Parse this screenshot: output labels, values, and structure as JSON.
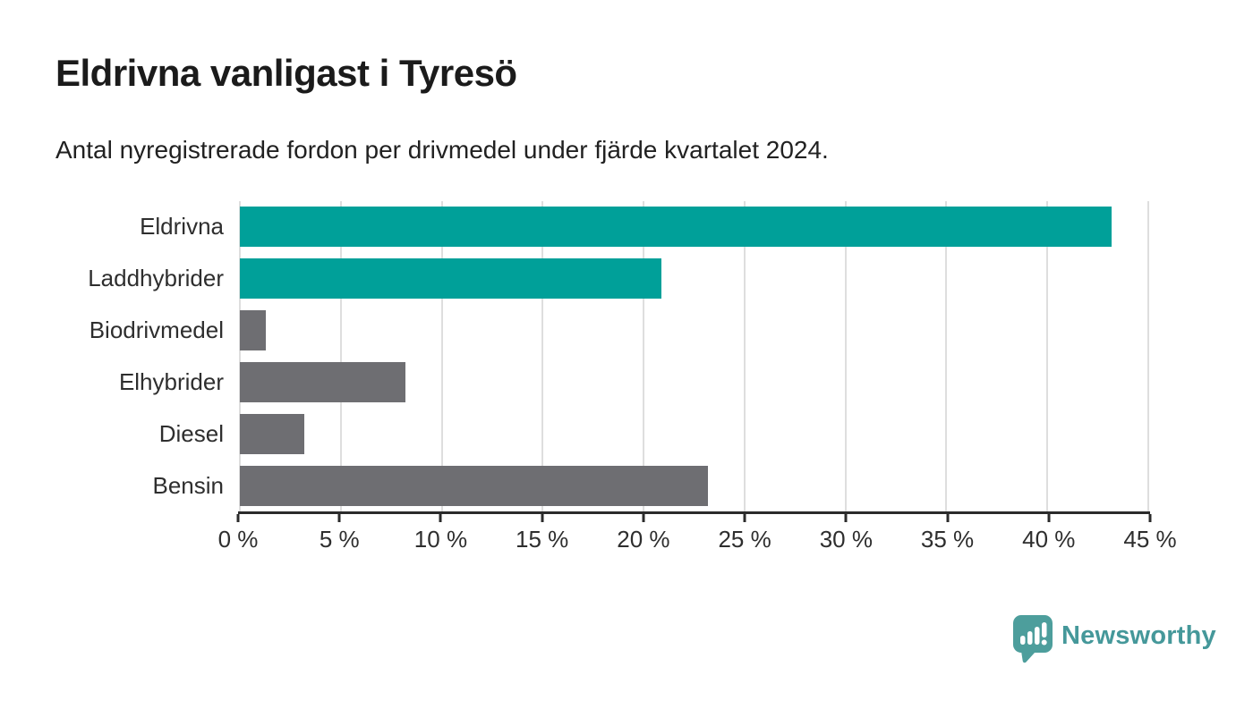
{
  "header": {
    "title": "Eldrivna vanligast i Tyresö",
    "subtitle": "Antal nyregistrerade fordon per drivmedel under fjärde kvartalet 2024."
  },
  "chart_data": {
    "type": "bar",
    "orientation": "horizontal",
    "title": "Eldrivna vanligast i Tyresö",
    "subtitle": "Antal nyregistrerade fordon per drivmedel under fjärde kvartalet 2024.",
    "categories": [
      "Eldrivna",
      "Laddhybrider",
      "Biodrivmedel",
      "Elhybrider",
      "Diesel",
      "Bensin"
    ],
    "values": [
      43.2,
      20.9,
      1.3,
      8.2,
      3.2,
      23.2
    ],
    "unit": "%",
    "bar_colors": [
      "#00a099",
      "#00a099",
      "#6e6e72",
      "#6e6e72",
      "#6e6e72",
      "#6e6e72"
    ],
    "x_tick_labels": [
      "0 %",
      "5 %",
      "10 %",
      "15 %",
      "20 %",
      "25 %",
      "30 %",
      "35 %",
      "40 %",
      "45 %"
    ],
    "xlim": [
      0,
      45
    ],
    "grid": "vertical",
    "legend": "none",
    "xlabel": "",
    "ylabel": ""
  },
  "colors": {
    "teal": "#00a099",
    "gray": "#6e6e72",
    "gridline": "#dedede",
    "axis": "#2b2b2b",
    "logo_teal": "#45989a",
    "logo_icon_teal": "#4d9e9c"
  },
  "footer": {
    "brand": "Newsworthy"
  }
}
